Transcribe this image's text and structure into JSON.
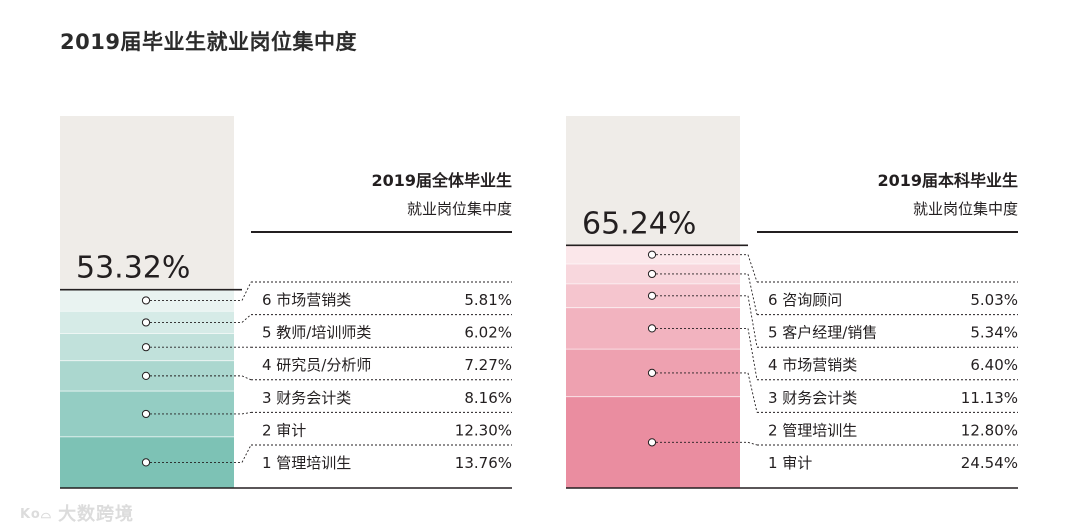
{
  "page_title": "2019届毕业生就业岗位集中度",
  "watermark": {
    "logo": "Ko⌓",
    "text": "大数跨境"
  },
  "chart_data": [
    {
      "type": "bar",
      "title": "2019届全体毕业生",
      "subtitle": "就业岗位集中度",
      "total_label": "53.32%",
      "total": 53.32,
      "accent_colors": [
        "#e9f3f1",
        "#d6ebe7",
        "#c1e1db",
        "#abd7cf",
        "#94cdc3",
        "#7dc2b5"
      ],
      "top_color": "#efece8",
      "items": [
        {
          "rank": "6",
          "name": "市场营销类",
          "value": 5.81,
          "label": "5.81%"
        },
        {
          "rank": "5",
          "name": "教师/培训师类",
          "value": 6.02,
          "label": "6.02%"
        },
        {
          "rank": "4",
          "name": "研究员/分析师",
          "value": 7.27,
          "label": "7.27%"
        },
        {
          "rank": "3",
          "name": "财务会计类",
          "value": 8.16,
          "label": "8.16%"
        },
        {
          "rank": "2",
          "name": "审计",
          "value": 12.3,
          "label": "12.30%"
        },
        {
          "rank": "1",
          "name": "管理培训生",
          "value": 13.76,
          "label": "13.76%"
        }
      ]
    },
    {
      "type": "bar",
      "title": "2019届本科毕业生",
      "subtitle": "就业岗位集中度",
      "total_label": "65.24%",
      "total": 65.24,
      "accent_colors": [
        "#fbe7ea",
        "#f8d7dd",
        "#f5c5ce",
        "#f2b3bf",
        "#eea1b0",
        "#ea8da0"
      ],
      "top_color": "#efece8",
      "items": [
        {
          "rank": "6",
          "name": "咨询顾问",
          "value": 5.03,
          "label": "5.03%"
        },
        {
          "rank": "5",
          "name": "客户经理/销售",
          "value": 5.34,
          "label": "5.34%"
        },
        {
          "rank": "4",
          "name": "市场营销类",
          "value": 6.4,
          "label": "6.40%"
        },
        {
          "rank": "3",
          "name": "财务会计类",
          "value": 11.13,
          "label": "11.13%"
        },
        {
          "rank": "2",
          "name": "管理培训生",
          "value": 12.8,
          "label": "12.80%"
        },
        {
          "rank": "1",
          "name": "审计",
          "value": 24.54,
          "label": "24.54%"
        }
      ]
    }
  ]
}
